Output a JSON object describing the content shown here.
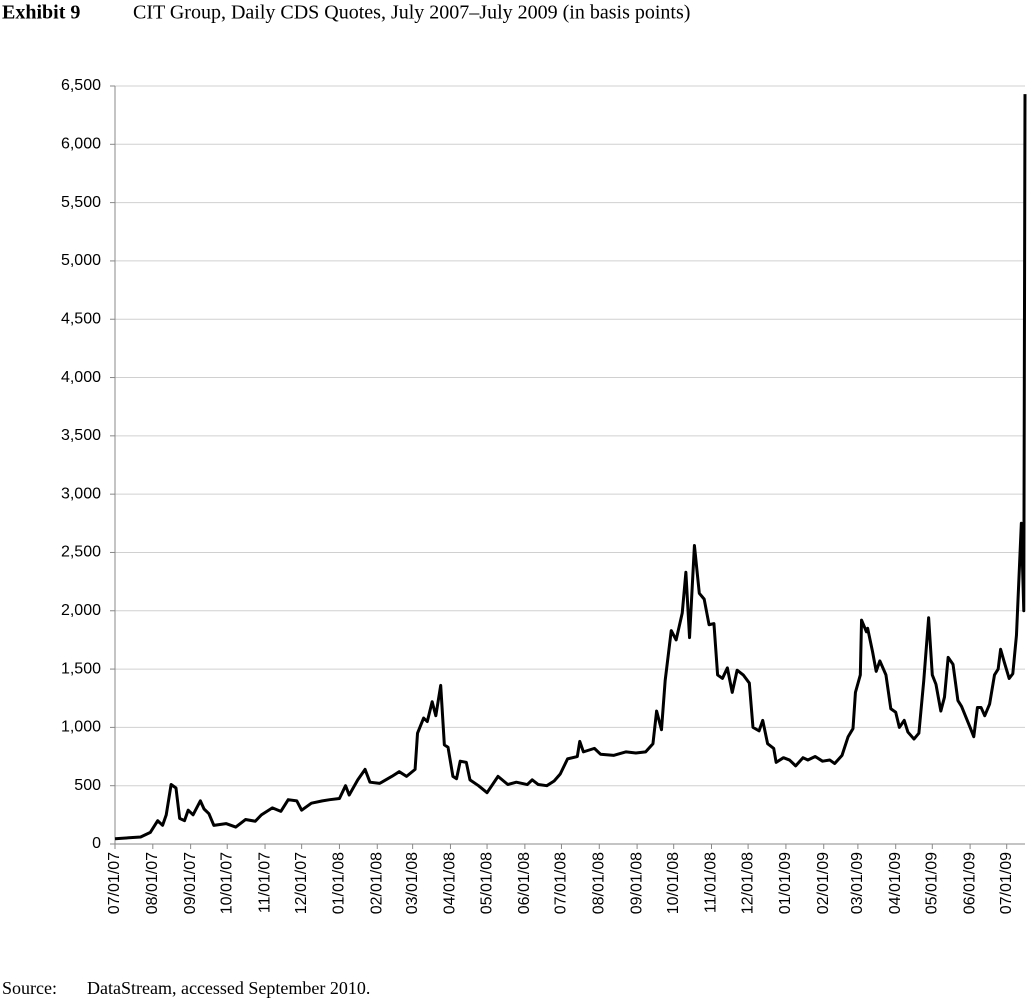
{
  "chart_data": {
    "type": "line",
    "exhibit": "Exhibit 9",
    "title": "CIT Group, Daily CDS Quotes, July 2007–July 2009 (in basis points)",
    "source_label": "Source:",
    "source": "DataStream, accessed September 2010.",
    "color": "#000000",
    "grid": true,
    "x": [
      "2007-07-01",
      "2007-07-22",
      "2007-07-30",
      "2007-08-05",
      "2007-08-09",
      "2007-08-12",
      "2007-08-16",
      "2007-08-20",
      "2007-08-23",
      "2007-08-27",
      "2007-08-30",
      "2007-09-03",
      "2007-09-09",
      "2007-09-12",
      "2007-09-16",
      "2007-09-20",
      "2007-09-30",
      "2007-10-08",
      "2007-10-16",
      "2007-10-24",
      "2007-10-29",
      "2007-11-07",
      "2007-11-14",
      "2007-11-20",
      "2007-11-27",
      "2007-12-01",
      "2007-12-09",
      "2007-12-18",
      "2007-12-24",
      "2008-01-01",
      "2008-01-06",
      "2008-01-09",
      "2008-01-16",
      "2008-01-22",
      "2008-01-26",
      "2008-02-03",
      "2008-02-13",
      "2008-02-19",
      "2008-02-25",
      "2008-03-03",
      "2008-03-05",
      "2008-03-10",
      "2008-03-13",
      "2008-03-17",
      "2008-03-20",
      "2008-03-24",
      "2008-03-27",
      "2008-03-30",
      "2008-04-03",
      "2008-04-06",
      "2008-04-09",
      "2008-04-14",
      "2008-04-17",
      "2008-04-24",
      "2008-05-01",
      "2008-05-10",
      "2008-05-18",
      "2008-05-25",
      "2008-06-03",
      "2008-06-07",
      "2008-06-12",
      "2008-06-19",
      "2008-06-25",
      "2008-06-30",
      "2008-07-06",
      "2008-07-14",
      "2008-07-16",
      "2008-07-19",
      "2008-07-28",
      "2008-08-02",
      "2008-08-13",
      "2008-08-23",
      "2008-08-31",
      "2008-09-08",
      "2008-09-14",
      "2008-09-17",
      "2008-09-21",
      "2008-09-24",
      "2008-09-29",
      "2008-10-03",
      "2008-10-08",
      "2008-10-11",
      "2008-10-14",
      "2008-10-18",
      "2008-10-22",
      "2008-10-26",
      "2008-10-30",
      "2008-11-03",
      "2008-11-06",
      "2008-11-10",
      "2008-11-14",
      "2008-11-18",
      "2008-11-22",
      "2008-11-27",
      "2008-12-02",
      "2008-12-05",
      "2008-12-10",
      "2008-12-13",
      "2008-12-17",
      "2008-12-22",
      "2008-12-24",
      "2008-12-30",
      "2009-01-04",
      "2009-01-09",
      "2009-01-15",
      "2009-01-19",
      "2009-01-25",
      "2009-01-31",
      "2009-02-06",
      "2009-02-10",
      "2009-02-16",
      "2009-02-21",
      "2009-02-25",
      "2009-02-27",
      "2009-03-03",
      "2009-03-04",
      "2009-03-08",
      "2009-03-09",
      "2009-03-13",
      "2009-03-16",
      "2009-03-19",
      "2009-03-24",
      "2009-03-28",
      "2009-04-01",
      "2009-04-04",
      "2009-04-08",
      "2009-04-11",
      "2009-04-16",
      "2009-04-20",
      "2009-04-24",
      "2009-04-28",
      "2009-05-01",
      "2009-05-04",
      "2009-05-08",
      "2009-05-11",
      "2009-05-14",
      "2009-05-18",
      "2009-05-22",
      "2009-05-25",
      "2009-06-01",
      "2009-06-04",
      "2009-06-07",
      "2009-06-10",
      "2009-06-13",
      "2009-06-17",
      "2009-06-21",
      "2009-06-24",
      "2009-06-26",
      "2009-06-29",
      "2009-07-03",
      "2009-07-06",
      "2009-07-09",
      "2009-07-13",
      "2009-07-15",
      "2009-07-16"
    ],
    "values": [
      45,
      60,
      100,
      200,
      160,
      250,
      510,
      480,
      220,
      200,
      290,
      250,
      370,
      300,
      260,
      160,
      175,
      145,
      210,
      195,
      250,
      310,
      280,
      380,
      370,
      290,
      350,
      370,
      380,
      390,
      500,
      420,
      550,
      640,
      530,
      520,
      580,
      620,
      580,
      640,
      950,
      1080,
      1050,
      1220,
      1100,
      1360,
      850,
      830,
      580,
      560,
      710,
      700,
      550,
      500,
      440,
      580,
      510,
      530,
      510,
      550,
      510,
      500,
      540,
      600,
      730,
      750,
      880,
      790,
      820,
      770,
      760,
      790,
      780,
      790,
      860,
      1140,
      980,
      1400,
      1830,
      1750,
      1980,
      2330,
      1770,
      2560,
      2150,
      2100,
      1880,
      1890,
      1450,
      1420,
      1510,
      1300,
      1490,
      1450,
      1380,
      1000,
      970,
      1060,
      860,
      820,
      700,
      740,
      720,
      670,
      740,
      720,
      750,
      710,
      720,
      690,
      760,
      920,
      990,
      1300,
      1450,
      1920,
      1820,
      1850,
      1650,
      1480,
      1570,
      1450,
      1160,
      1130,
      1000,
      1060,
      960,
      900,
      950,
      1400,
      1940,
      1450,
      1370,
      1140,
      1260,
      1600,
      1540,
      1230,
      1180,
      1000,
      920,
      1170,
      1170,
      1100,
      1200,
      1450,
      1500,
      1670,
      1560,
      1420,
      1460,
      1790,
      2750,
      2000,
      6430
    ],
    "xlim": [
      "2007-07-01",
      "2009-07-16"
    ],
    "xticks": [
      {
        "value": "2007-07-01",
        "label": "07/01/07"
      },
      {
        "value": "2007-08-01",
        "label": "08/01/07"
      },
      {
        "value": "2007-09-01",
        "label": "09/01/07"
      },
      {
        "value": "2007-10-01",
        "label": "10/01/07"
      },
      {
        "value": "2007-11-01",
        "label": "11/01/07"
      },
      {
        "value": "2007-12-01",
        "label": "12/01/07"
      },
      {
        "value": "2008-01-01",
        "label": "01/01/08"
      },
      {
        "value": "2008-02-01",
        "label": "02/01/08"
      },
      {
        "value": "2008-03-01",
        "label": "03/01/08"
      },
      {
        "value": "2008-04-01",
        "label": "04/01/08"
      },
      {
        "value": "2008-05-01",
        "label": "05/01/08"
      },
      {
        "value": "2008-06-01",
        "label": "06/01/08"
      },
      {
        "value": "2008-07-01",
        "label": "07/01/08"
      },
      {
        "value": "2008-08-01",
        "label": "08/01/08"
      },
      {
        "value": "2008-09-01",
        "label": "09/01/08"
      },
      {
        "value": "2008-10-01",
        "label": "10/01/08"
      },
      {
        "value": "2008-11-01",
        "label": "11/01/08"
      },
      {
        "value": "2008-12-01",
        "label": "12/01/08"
      },
      {
        "value": "2009-01-01",
        "label": "01/01/09"
      },
      {
        "value": "2009-02-01",
        "label": "02/01/09"
      },
      {
        "value": "2009-03-01",
        "label": "03/01/09"
      },
      {
        "value": "2009-04-01",
        "label": "04/01/09"
      },
      {
        "value": "2009-05-01",
        "label": "05/01/09"
      },
      {
        "value": "2009-06-01",
        "label": "06/01/09"
      },
      {
        "value": "2009-07-01",
        "label": "07/01/09"
      }
    ],
    "ylim": [
      0,
      6500
    ],
    "yticks": [
      0,
      500,
      {
        "value": 1000,
        "label": "1,000"
      },
      {
        "value": 1500,
        "label": "1,500"
      },
      {
        "value": 2000,
        "label": "2,000"
      },
      {
        "value": 2500,
        "label": "2,500"
      },
      {
        "value": 3000,
        "label": "3,000"
      },
      {
        "value": 3500,
        "label": "3,500"
      },
      {
        "value": 4000,
        "label": "4,000"
      },
      {
        "value": 4500,
        "label": "4,500"
      },
      {
        "value": 5000,
        "label": "5,000"
      },
      {
        "value": 5500,
        "label": "5,500"
      },
      {
        "value": 6000,
        "label": "6,000"
      },
      {
        "value": 6500,
        "label": "6,500"
      }
    ]
  }
}
